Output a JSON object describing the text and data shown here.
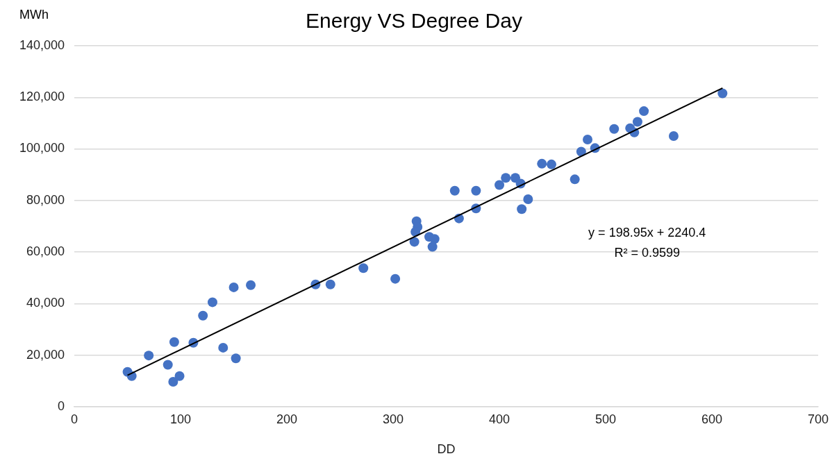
{
  "chart_data": {
    "type": "scatter",
    "title": "Energy VS Degree Day",
    "xlabel": "DD",
    "ylabel": "MWh",
    "xlim": [
      0,
      700
    ],
    "xticks": [
      0,
      100,
      200,
      300,
      400,
      500,
      600,
      700
    ],
    "ylim": [
      0,
      140000
    ],
    "yticks": [
      {
        "value": 0,
        "label": "0"
      },
      {
        "value": 20000,
        "label": "20,000"
      },
      {
        "value": 40000,
        "label": "40,000"
      },
      {
        "value": 60000,
        "label": "60,000"
      },
      {
        "value": 80000,
        "label": "80,000"
      },
      {
        "value": 100000,
        "label": "100,000"
      },
      {
        "value": 120000,
        "label": "120,000"
      },
      {
        "value": 140000,
        "label": "140,000"
      }
    ],
    "grid": "y",
    "legend": false,
    "annotations": [
      "y = 198.95x + 2240.4",
      "R² = 0.9599"
    ],
    "series": [
      {
        "type": "scatter",
        "marker": "circle",
        "color": "#4472c4",
        "x": [
          50,
          54,
          70,
          88,
          94,
          93,
          99,
          112,
          121,
          130,
          140,
          150,
          152,
          166,
          227,
          241,
          272,
          302,
          322,
          323,
          321,
          320,
          334,
          339,
          337,
          362,
          358,
          378,
          378,
          400,
          406,
          415,
          420,
          427,
          421,
          471,
          440,
          449,
          477,
          483,
          490,
          508,
          523,
          527,
          530,
          536,
          564,
          610
        ],
        "values": [
          13500,
          11850,
          19840,
          16260,
          25080,
          9650,
          11850,
          24800,
          35280,
          40510,
          22870,
          46300,
          18740,
          47130,
          47400,
          47400,
          53740,
          49600,
          71930,
          69730,
          67800,
          63940,
          65870,
          65040,
          62010,
          73030,
          83780,
          83780,
          76890,
          85990,
          88740,
          88740,
          86540,
          80480,
          76620,
          88190,
          94260,
          93980,
          98940,
          103630,
          100320,
          107760,
          108040,
          106380,
          110520,
          114650,
          105000,
          121540
        ]
      },
      {
        "type": "line",
        "marker": "none",
        "color": "#000000",
        "x": [
          50,
          610
        ],
        "values": [
          12188,
          123600
        ]
      }
    ]
  }
}
